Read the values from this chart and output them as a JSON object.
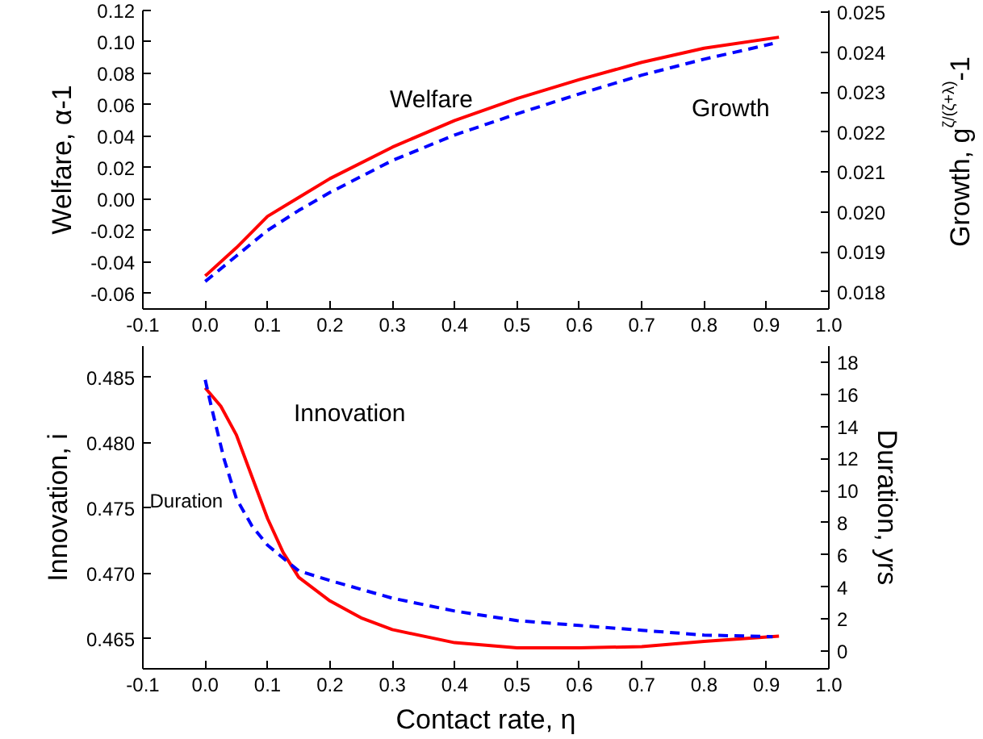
{
  "chart_data": [
    {
      "type": "line",
      "ylabel": "Welfare, α-1",
      "y2label": "Growth, g$^{ζ/(ζ+λ)}$-1",
      "xlim": [
        -0.1,
        1.0
      ],
      "xticks": [
        {
          "value": -0.1,
          "label": "-0.1"
        },
        {
          "value": 0.0,
          "label": "0.0"
        },
        0.1,
        0.2,
        0.3,
        0.4,
        0.5,
        0.6,
        0.7,
        0.8,
        0.9,
        {
          "value": 1.0,
          "label": "1.0"
        }
      ],
      "ylim": [
        -0.07,
        0.12
      ],
      "yticks": [
        {
          "value": -0.06,
          "label": "-0.06"
        },
        {
          "value": -0.04,
          "label": "-0.04"
        },
        {
          "value": -0.02,
          "label": "-0.02"
        },
        {
          "value": 0.0,
          "label": "0.00"
        },
        0.02,
        0.04,
        0.06,
        0.08,
        {
          "value": 0.1,
          "label": "0.10"
        },
        0.12
      ],
      "y2lim": [
        0.01757,
        0.02505
      ],
      "y2ticks": [
        0.018,
        0.019,
        {
          "value": 0.02,
          "label": "0.020"
        },
        0.021,
        0.022,
        0.023,
        0.024,
        0.025
      ],
      "grid": false,
      "series": [
        {
          "color": "#ff0000",
          "line_style": "solid",
          "x": [
            0,
            0.05,
            0.1,
            0.15,
            0.2,
            0.3,
            0.4,
            0.5,
            0.6,
            0.7,
            0.8,
            0.92
          ],
          "values": [
            -0.049,
            -0.031,
            -0.011,
            0.001,
            0.013,
            0.033,
            0.05,
            0.064,
            0.076,
            0.087,
            0.096,
            0.103
          ]
        },
        {
          "color": "#0000ff",
          "line_style": "dashed",
          "axis": "y2",
          "x": [
            0,
            0.05,
            0.1,
            0.15,
            0.2,
            0.3,
            0.4,
            0.5,
            0.6,
            0.7,
            0.8,
            0.91
          ],
          "values": [
            0.01826,
            0.0189,
            0.01954,
            0.02004,
            0.02049,
            0.02129,
            0.02193,
            0.02246,
            0.02296,
            0.02343,
            0.02383,
            0.02422
          ]
        }
      ],
      "annotations": [
        "Welfare",
        "Growth"
      ]
    },
    {
      "type": "line",
      "xlabel": "Contact rate, η",
      "ylabel": "Innovation, i",
      "y2label": "Duration, yrs",
      "xlim": [
        -0.1,
        1.0
      ],
      "xticks": [
        {
          "value": -0.1,
          "label": "-0.1"
        },
        {
          "value": 0.0,
          "label": "0.0"
        },
        0.1,
        0.2,
        0.3,
        0.4,
        0.5,
        0.6,
        0.7,
        0.8,
        0.9,
        {
          "value": 1.0,
          "label": "1.0"
        }
      ],
      "ylim": [
        0.4627,
        0.4874
      ],
      "yticks": [
        0.465,
        {
          "value": 0.47,
          "label": "0.470"
        },
        0.475,
        {
          "value": 0.48,
          "label": "0.480"
        },
        0.485
      ],
      "y2lim": [
        -1.1,
        19.0
      ],
      "y2ticks": [
        0,
        2,
        4,
        6,
        8,
        10,
        12,
        14,
        16,
        18
      ],
      "grid": false,
      "series": [
        {
          "color": "#ff0000",
          "line_style": "solid",
          "x": [
            0,
            0.025,
            0.05,
            0.075,
            0.1,
            0.125,
            0.15,
            0.2,
            0.25,
            0.3,
            0.4,
            0.5,
            0.6,
            0.7,
            0.8,
            0.92
          ],
          "values": [
            0.4842,
            0.4828,
            0.4806,
            0.4774,
            0.4742,
            0.4716,
            0.4697,
            0.4679,
            0.4666,
            0.4657,
            0.4647,
            0.4643,
            0.4643,
            0.4644,
            0.4648,
            0.4652
          ]
        },
        {
          "color": "#0000ff",
          "line_style": "dashed",
          "axis": "y2",
          "x": [
            0,
            0.01,
            0.03,
            0.05,
            0.075,
            0.1,
            0.15,
            0.2,
            0.3,
            0.4,
            0.5,
            0.6,
            0.7,
            0.8,
            0.91
          ],
          "values": [
            16.9,
            15.2,
            12.0,
            9.5,
            7.8,
            6.6,
            5.0,
            4.4,
            3.3,
            2.5,
            1.9,
            1.6,
            1.3,
            1.0,
            0.9
          ]
        }
      ],
      "annotations": [
        "Innovation",
        "Duration"
      ]
    }
  ]
}
